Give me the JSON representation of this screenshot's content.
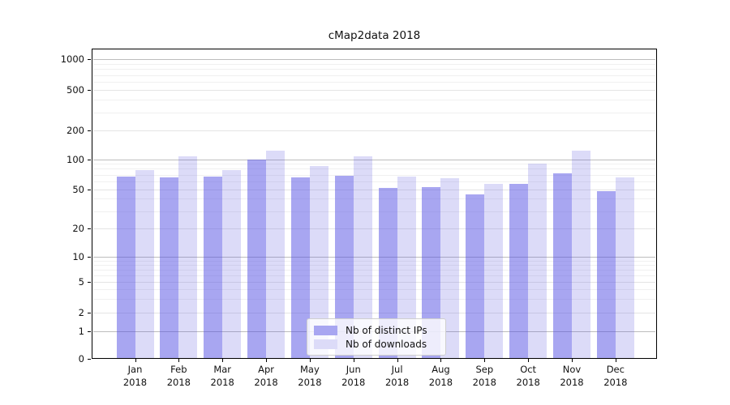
{
  "chart_data": {
    "type": "bar",
    "title": "cMap2data 2018",
    "categories": [
      {
        "month": "Jan",
        "year": "2018"
      },
      {
        "month": "Feb",
        "year": "2018"
      },
      {
        "month": "Mar",
        "year": "2018"
      },
      {
        "month": "Apr",
        "year": "2018"
      },
      {
        "month": "May",
        "year": "2018"
      },
      {
        "month": "Jun",
        "year": "2018"
      },
      {
        "month": "Jul",
        "year": "2018"
      },
      {
        "month": "Aug",
        "year": "2018"
      },
      {
        "month": "Sep",
        "year": "2018"
      },
      {
        "month": "Oct",
        "year": "2018"
      },
      {
        "month": "Nov",
        "year": "2018"
      },
      {
        "month": "Dec",
        "year": "2018"
      }
    ],
    "series": [
      {
        "name": "Nb of distinct IPs",
        "color": "#a8a6f1",
        "fill": "rgba(81,77,227,0.5)",
        "values": [
          67,
          65,
          67,
          100,
          65,
          68,
          51,
          52,
          44,
          56,
          72,
          48
        ]
      },
      {
        "name": "Nb of downloads",
        "color": "#dcdbf8",
        "fill": "rgba(96,91,223,0.22)",
        "values": [
          78,
          108,
          78,
          123,
          85,
          108,
          67,
          64,
          56,
          91,
          123,
          66
        ]
      }
    ],
    "y_axis": {
      "scale": "symlog",
      "ticks": [
        0,
        1,
        2,
        5,
        10,
        20,
        50,
        100,
        200,
        500,
        1000
      ],
      "decade_ticks": [
        1,
        10,
        100,
        1000
      ],
      "minor_ticks": [
        3,
        4,
        6,
        7,
        8,
        9,
        30,
        40,
        60,
        70,
        80,
        90,
        300,
        400,
        600,
        700,
        800,
        900
      ],
      "range": [
        0,
        1300
      ]
    },
    "legend": {
      "position": "lower center"
    },
    "grid": true,
    "colors": {
      "grid_decade": "#bdbdbd",
      "grid_labeled": "#e4e4e4",
      "grid_minor": "#f0f0f0",
      "spine": "#000000",
      "text": "#111111"
    }
  }
}
